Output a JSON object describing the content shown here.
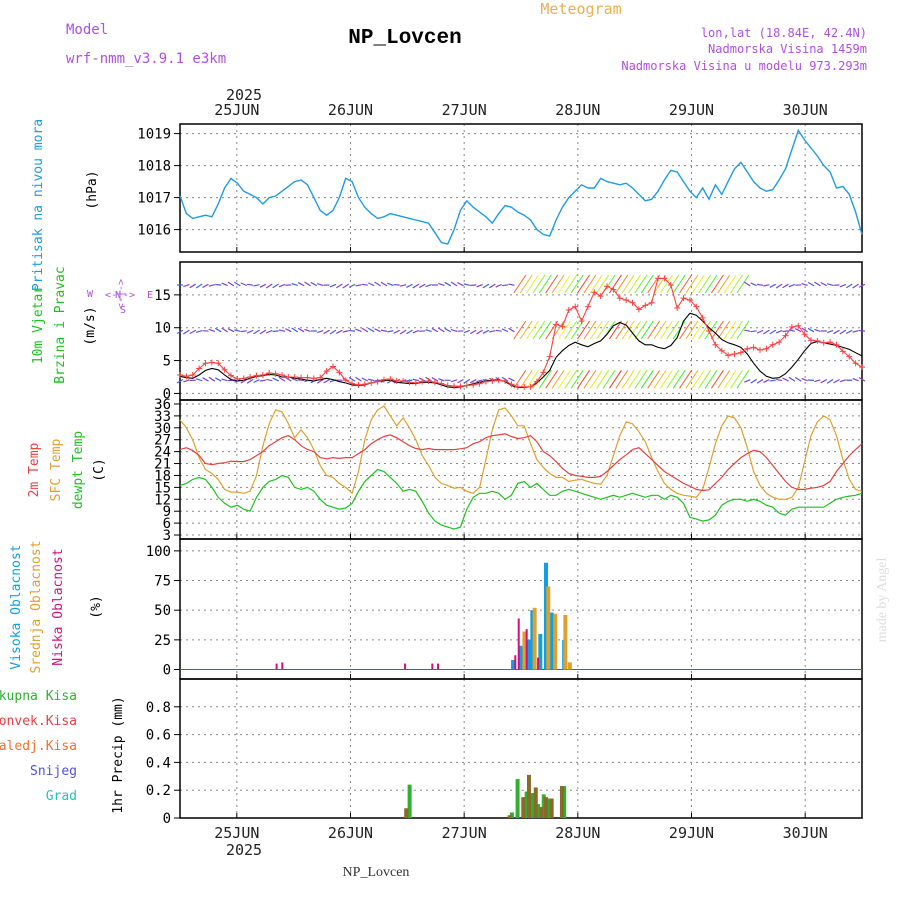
{
  "header": {
    "model_label": "Model",
    "model_value": "wrf-nmm_v3.9.1 e3km",
    "title": "NP_Lovcen",
    "subtitle": "Meteogram",
    "coords": "lon,lat (18.84E, 42.4N)",
    "elevation": "Nadmorska Visina 1459m",
    "model_elevation": "Nadmorska Visina u modelu 973.293m",
    "footer_station": "NP_Lovcen",
    "watermark": "made by Angel"
  },
  "colors": {
    "pressure": "#1e9be6",
    "wind_speed": "#000000",
    "wind_gust": "#ff4040",
    "temp_2m": "#e84040",
    "temp_sfc": "#e0a030",
    "dewpoint": "#20c020",
    "cloud_high": "#10a0e0",
    "cloud_mid": "#e0a030",
    "cloud_low": "#d01080",
    "precip_total": "#30b030",
    "precip_conv": "#e84040",
    "precip_frozen": "#f07030",
    "snow": "#5050e0",
    "hail": "#20c0c0",
    "purple": "#b050e0"
  },
  "chart_data": [
    {
      "type": "line",
      "panel": "pressure",
      "ylabel": "Pritisak na nivou mora",
      "unit": "(hPa)",
      "ylim": [
        1015.3,
        1019.3
      ],
      "yticks": [
        1016,
        1017,
        1018,
        1019
      ],
      "x_start": 24.5,
      "x_end": 30.5,
      "top_date_labels": [
        "25JUN",
        "26JUN",
        "27JUN",
        "28JUN",
        "29JUN",
        "30JUN"
      ],
      "top_year": "2025",
      "x_ticks": [
        25,
        26,
        27,
        28,
        29,
        30
      ],
      "values": [
        1017.05,
        1016.5,
        1016.35,
        1016.4,
        1016.45,
        1016.4,
        1016.8,
        1017.3,
        1017.6,
        1017.45,
        1017.2,
        1017.1,
        1017.0,
        1016.8,
        1017.0,
        1017.05,
        1017.2,
        1017.35,
        1017.5,
        1017.55,
        1017.4,
        1017.0,
        1016.6,
        1016.45,
        1016.6,
        1017.0,
        1017.6,
        1017.5,
        1017.0,
        1016.7,
        1016.5,
        1016.35,
        1016.4,
        1016.5,
        1016.45,
        1016.4,
        1016.35,
        1016.3,
        1016.25,
        1016.2,
        1015.9,
        1015.6,
        1015.55,
        1016.0,
        1016.6,
        1016.9,
        1016.7,
        1016.55,
        1016.4,
        1016.2,
        1016.5,
        1016.75,
        1016.7,
        1016.55,
        1016.45,
        1016.3,
        1016.0,
        1015.85,
        1015.8,
        1016.3,
        1016.7,
        1017.0,
        1017.2,
        1017.4,
        1017.3,
        1017.3,
        1017.6,
        1017.5,
        1017.45,
        1017.4,
        1017.45,
        1017.3,
        1017.1,
        1016.9,
        1016.95,
        1017.2,
        1017.55,
        1017.85,
        1017.8,
        1017.5,
        1017.2,
        1017.0,
        1017.3,
        1016.95,
        1017.4,
        1017.1,
        1017.5,
        1017.9,
        1018.1,
        1017.8,
        1017.5,
        1017.3,
        1017.2,
        1017.25,
        1017.55,
        1017.9,
        1018.5,
        1019.1,
        1018.8,
        1018.55,
        1018.3,
        1018.0,
        1017.8,
        1017.3,
        1017.35,
        1017.1,
        1016.55,
        1015.85
      ]
    },
    {
      "type": "line",
      "panel": "wind",
      "ylabel_lines": [
        "10m Vjetar",
        "Brzina i Pravac"
      ],
      "unit": "(m/s)",
      "compass_labels": [
        "N",
        "W",
        "E",
        "S"
      ],
      "compass_arrows": "<-|->",
      "ylim": [
        -1,
        20
      ],
      "yticks": [
        0,
        5,
        10,
        15
      ],
      "series": [
        {
          "name": "wind speed",
          "values": [
            2.6,
            2.4,
            2.3,
            2.8,
            3.5,
            3.8,
            3.6,
            2.8,
            2.1,
            1.9,
            2.0,
            2.3,
            2.6,
            2.7,
            2.9,
            2.8,
            2.5,
            2.5,
            2.3,
            2.2,
            2.0,
            1.9,
            2.1,
            2.3,
            2.1,
            1.8,
            1.6,
            1.3,
            1.2,
            1.3,
            1.6,
            1.8,
            2.0,
            2.0,
            1.7,
            1.6,
            1.5,
            1.5,
            1.7,
            1.7,
            1.6,
            1.3,
            1.0,
            0.9,
            1.0,
            1.2,
            1.5,
            1.7,
            1.9,
            2.0,
            2.1,
            1.8,
            1.2,
            0.9,
            0.9,
            1.0,
            1.6,
            2.5,
            3.5,
            5.5,
            6.5,
            7.3,
            7.8,
            7.4,
            7.1,
            7.6,
            8.0,
            9.0,
            10.3,
            10.8,
            10.4,
            9.2,
            8.0,
            7.4,
            7.4,
            7.0,
            6.8,
            7.3,
            8.5,
            11.0,
            12.2,
            11.9,
            11.0,
            10.0,
            9.2,
            8.2,
            7.7,
            7.4,
            7.0,
            6.0,
            4.6,
            3.4,
            2.6,
            2.3,
            2.4,
            3.0,
            4.0,
            5.2,
            6.5,
            7.6,
            7.9,
            7.7,
            7.5,
            7.3,
            7.0,
            6.7,
            6.2,
            5.7
          ]
        },
        {
          "name": "wind gust",
          "values": [
            2.8,
            2.6,
            2.8,
            3.8,
            4.6,
            4.7,
            4.6,
            3.6,
            2.7,
            2.2,
            2.3,
            2.5,
            2.7,
            2.8,
            3.1,
            3.0,
            2.8,
            2.5,
            2.5,
            2.4,
            2.4,
            2.3,
            2.4,
            3.4,
            4.1,
            3.2,
            2.0,
            1.5,
            1.3,
            1.4,
            1.6,
            1.8,
            2.1,
            2.2,
            1.9,
            1.9,
            1.7,
            1.6,
            1.8,
            1.9,
            1.7,
            1.5,
            1.2,
            1.1,
            1.1,
            1.2,
            1.3,
            1.5,
            1.8,
            1.9,
            2.0,
            1.9,
            1.4,
            1.0,
            1.0,
            1.0,
            1.8,
            3.2,
            5.6,
            10.5,
            10.2,
            12.7,
            13.2,
            11.0,
            13.2,
            15.4,
            14.8,
            16.3,
            15.8,
            14.5,
            14.2,
            13.8,
            12.8,
            13.4,
            13.8,
            17.5,
            17.5,
            16.5,
            13.0,
            14.5,
            14.2,
            13.2,
            11.5,
            9.5,
            7.4,
            6.5,
            5.8,
            6.0,
            6.2,
            6.8,
            7.0,
            6.6,
            6.8,
            7.4,
            7.8,
            8.8,
            10.1,
            10.3,
            9.0,
            8.1,
            8.0,
            7.7,
            7.8,
            7.4,
            6.4,
            5.6,
            4.6,
            4.0
          ]
        }
      ]
    },
    {
      "type": "line",
      "panel": "temperature",
      "ylabel_lines": [
        "2m Temp",
        "SFC Temp",
        "dewpt Temp"
      ],
      "unit": "(C)",
      "ylim": [
        2,
        37
      ],
      "yticks": [
        3,
        6,
        9,
        12,
        15,
        18,
        21,
        24,
        27,
        30,
        33,
        36
      ],
      "series": [
        {
          "name": "2m Temp",
          "values": [
            24.5,
            25.0,
            24.3,
            23.0,
            21.0,
            20.7,
            21.0,
            21.2,
            21.6,
            21.5,
            21.5,
            22.0,
            23.0,
            24.0,
            25.5,
            26.5,
            27.5,
            28.0,
            27.0,
            25.5,
            24.5,
            24.0,
            22.5,
            22.2,
            22.5,
            22.3,
            22.5,
            22.5,
            23.5,
            24.5,
            26.0,
            27.0,
            27.8,
            28.2,
            27.5,
            26.5,
            25.5,
            24.8,
            24.5,
            24.8,
            24.5,
            24.5,
            24.5,
            24.5,
            24.7,
            25.0,
            26.0,
            26.5,
            27.5,
            28.0,
            28.2,
            28.5,
            27.8,
            27.3,
            27.5,
            28.0,
            26.5,
            24.0,
            23.0,
            21.5,
            19.8,
            18.5,
            18.0,
            17.8,
            17.5,
            17.5,
            17.8,
            19.0,
            20.5,
            22.0,
            23.2,
            24.5,
            25.0,
            23.5,
            22.0,
            20.5,
            19.0,
            18.0,
            17.0,
            16.0,
            15.3,
            14.5,
            14.2,
            14.4,
            16.0,
            17.5,
            19.5,
            21.0,
            22.5,
            23.5,
            24.3,
            24.0,
            22.5,
            20.5,
            18.5,
            16.5,
            15.0,
            14.5,
            14.5,
            14.8,
            15.0,
            15.5,
            16.5,
            19.0,
            21.0,
            23.0,
            24.5,
            26.0
          ]
        },
        {
          "name": "SFC Temp",
          "values": [
            32.0,
            30.0,
            27.0,
            22.5,
            19.5,
            18.5,
            17.0,
            14.5,
            13.8,
            13.8,
            13.5,
            14.0,
            18.0,
            25.5,
            31.0,
            34.5,
            34.0,
            31.0,
            27.5,
            29.5,
            27.5,
            24.5,
            20.5,
            18.0,
            17.5,
            16.0,
            15.0,
            13.5,
            19.0,
            27.0,
            32.0,
            34.5,
            35.5,
            33.0,
            30.5,
            32.5,
            30.0,
            27.0,
            23.0,
            20.5,
            17.5,
            16.0,
            15.5,
            14.8,
            15.0,
            14.0,
            13.5,
            15.0,
            22.0,
            29.5,
            34.5,
            35.0,
            33.0,
            30.5,
            30.5,
            26.0,
            22.0,
            20.0,
            18.5,
            17.5,
            17.5,
            16.5,
            16.8,
            17.0,
            16.5,
            16.0,
            15.8,
            18.0,
            23.0,
            28.0,
            31.5,
            31.0,
            29.0,
            26.5,
            22.5,
            19.0,
            16.0,
            14.5,
            13.5,
            13.0,
            12.8,
            12.5,
            14.5,
            20.0,
            26.0,
            30.5,
            33.0,
            32.5,
            30.0,
            25.0,
            19.0,
            15.5,
            13.5,
            12.5,
            12.0,
            12.0,
            12.5,
            15.0,
            21.5,
            28.0,
            31.5,
            33.0,
            32.0,
            28.0,
            22.0,
            17.0,
            14.5,
            14.0
          ]
        },
        {
          "name": "dewpt Temp",
          "values": [
            15.5,
            16.0,
            17.0,
            17.5,
            17.0,
            15.0,
            12.5,
            11.0,
            10.0,
            10.5,
            9.5,
            9.0,
            12.5,
            15.0,
            16.5,
            17.0,
            18.0,
            17.5,
            15.0,
            14.5,
            15.0,
            14.0,
            12.0,
            10.5,
            10.0,
            9.5,
            9.8,
            11.0,
            14.0,
            16.5,
            18.0,
            19.5,
            19.0,
            17.5,
            16.0,
            14.0,
            14.5,
            14.0,
            11.5,
            8.5,
            6.5,
            5.5,
            5.0,
            4.5,
            5.0,
            9.5,
            12.5,
            13.5,
            13.5,
            14.0,
            13.5,
            12.0,
            13.0,
            16.0,
            16.5,
            15.0,
            16.0,
            14.5,
            13.0,
            13.0,
            14.0,
            14.5,
            14.0,
            13.5,
            13.0,
            12.5,
            12.0,
            12.5,
            13.0,
            12.5,
            13.0,
            13.5,
            13.0,
            12.5,
            13.0,
            13.0,
            12.0,
            13.0,
            12.5,
            11.0,
            7.5,
            7.0,
            6.5,
            6.8,
            8.0,
            10.5,
            11.5,
            12.0,
            12.0,
            11.5,
            12.0,
            11.5,
            10.5,
            10.0,
            8.5,
            8.0,
            9.5,
            10.0,
            10.0,
            10.0,
            10.0,
            10.0,
            11.0,
            12.0,
            12.5,
            12.8,
            13.0,
            13.5
          ]
        }
      ]
    },
    {
      "type": "bar",
      "panel": "clouds",
      "ylabel_lines": [
        "Visoka Oblacnost",
        "Srednja Oblacnost",
        "Niska Oblacnost"
      ],
      "unit": "(%)",
      "ylim": [
        -8,
        110
      ],
      "yticks": [
        0,
        25,
        50,
        75,
        100
      ],
      "series": [
        {
          "name": "Visoka Oblacnost",
          "bars": [
            [
              27.43,
              8
            ],
            [
              27.5,
              20
            ],
            [
              27.57,
              25
            ],
            [
              27.6,
              50
            ],
            [
              27.67,
              30
            ],
            [
              27.72,
              90
            ],
            [
              27.77,
              48
            ],
            [
              27.88,
              25
            ]
          ]
        },
        {
          "name": "Srednja Oblacnost",
          "bars": [
            [
              27.53,
              32
            ],
            [
              27.62,
              52
            ],
            [
              27.74,
              70
            ],
            [
              27.8,
              47
            ],
            [
              27.89,
              46
            ],
            [
              27.93,
              6
            ]
          ]
        },
        {
          "name": "Niska Oblacnost",
          "bars": [
            [
              25.35,
              5
            ],
            [
              25.4,
              6
            ],
            [
              26.48,
              5
            ],
            [
              26.72,
              5
            ],
            [
              26.77,
              5
            ],
            [
              27.45,
              12
            ],
            [
              27.48,
              43
            ],
            [
              27.55,
              34
            ],
            [
              27.65,
              10
            ]
          ]
        }
      ]
    },
    {
      "type": "bar",
      "panel": "precipitation",
      "legend": [
        "Ukupna Kisa",
        "Konvek.Kisa",
        "Zaledj.Kisa",
        "Snijeg",
        "Grad"
      ],
      "ylabel": "1hr Precip (mm)",
      "ylim": [
        0,
        1.0
      ],
      "yticks": [
        0,
        0.2,
        0.4,
        0.6,
        0.8
      ],
      "ytick_labels": [
        "0",
        "0.2",
        "0.4",
        "0.6",
        "0.8"
      ],
      "bottom_date_labels": [
        "25JUN",
        "26JUN",
        "27JUN",
        "28JUN",
        "29JUN",
        "30JUN"
      ],
      "bottom_year": "2025",
      "series": [
        {
          "name": "Ukupna Kisa",
          "bars": [
            [
              26.52,
              0.24
            ],
            [
              27.42,
              0.04
            ],
            [
              27.47,
              0.28
            ],
            [
              27.55,
              0.19
            ],
            [
              27.6,
              0.18
            ],
            [
              27.65,
              0.1
            ],
            [
              27.7,
              0.17
            ],
            [
              27.75,
              0.14
            ],
            [
              27.88,
              0.23
            ]
          ]
        },
        {
          "name": "Zaledj.Kisa",
          "bars": [
            [
              26.49,
              0.07
            ],
            [
              27.4,
              0.02
            ],
            [
              27.52,
              0.15
            ],
            [
              27.57,
              0.31
            ],
            [
              27.63,
              0.22
            ],
            [
              27.68,
              0.08
            ],
            [
              27.72,
              0.15
            ],
            [
              27.77,
              0.14
            ],
            [
              27.86,
              0.23
            ]
          ]
        }
      ]
    }
  ]
}
